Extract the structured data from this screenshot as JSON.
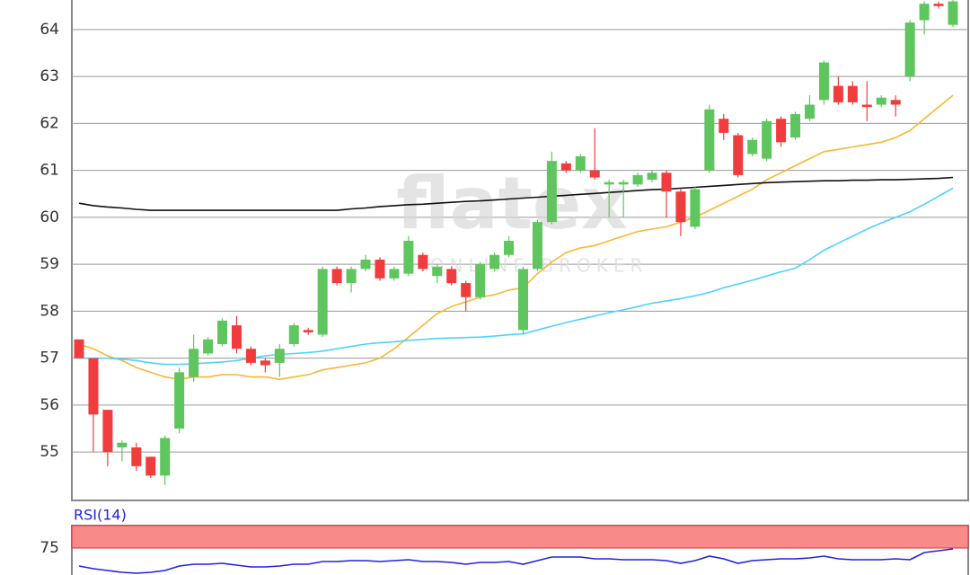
{
  "chart_data": [
    {
      "type": "candlestick",
      "watermark": "flatex",
      "watermark_sub": "ONLINE BROKER",
      "ylim": [
        53.97,
        64.63
      ],
      "yticks": [
        55,
        56,
        57,
        58,
        59,
        60,
        61,
        62,
        63,
        64
      ],
      "grid": true,
      "up_color": "#5fc55f",
      "down_color": "#f03c3c",
      "open": [
        57.4,
        57.0,
        55.9,
        55.1,
        55.1,
        54.9,
        54.5,
        55.5,
        56.6,
        57.1,
        57.3,
        57.7,
        57.2,
        56.95,
        56.9,
        57.3,
        57.6,
        57.5,
        58.9,
        58.6,
        58.9,
        59.1,
        58.7,
        58.8,
        59.2,
        58.75,
        58.9,
        58.6,
        58.3,
        58.9,
        59.2,
        57.6,
        58.9,
        59.9,
        61.15,
        61.0,
        61.0,
        60.7,
        60.7,
        60.7,
        60.8,
        60.95,
        60.55,
        59.8,
        61.0,
        62.1,
        61.75,
        61.35,
        61.25,
        62.1,
        61.7,
        62.1,
        62.5,
        62.8,
        62.8,
        62.4,
        62.4,
        62.5,
        63.0,
        64.2,
        64.55,
        64.1
      ],
      "high": [
        57.4,
        57.0,
        55.9,
        55.25,
        55.2,
        54.9,
        55.35,
        56.8,
        57.5,
        57.45,
        57.85,
        57.9,
        57.25,
        57.0,
        57.3,
        57.75,
        57.65,
        58.95,
        58.95,
        58.95,
        59.2,
        59.15,
        58.95,
        59.6,
        59.25,
        59.0,
        58.95,
        58.65,
        59.05,
        59.25,
        59.6,
        58.95,
        59.95,
        61.4,
        61.2,
        61.35,
        61.9,
        60.8,
        60.8,
        60.95,
        61.0,
        61.0,
        60.6,
        60.65,
        62.4,
        62.2,
        61.8,
        61.7,
        62.1,
        62.15,
        62.25,
        62.6,
        63.35,
        63.0,
        62.9,
        62.9,
        62.6,
        62.6,
        64.2,
        64.6,
        64.6,
        64.63
      ],
      "low": [
        57.0,
        55.0,
        54.7,
        54.8,
        54.6,
        54.45,
        54.3,
        55.4,
        56.5,
        57.05,
        57.25,
        57.1,
        56.85,
        56.7,
        56.6,
        57.25,
        57.5,
        57.45,
        58.55,
        58.4,
        58.85,
        58.65,
        58.65,
        58.75,
        58.85,
        58.6,
        58.55,
        58.0,
        58.25,
        58.85,
        59.15,
        57.5,
        58.85,
        59.85,
        60.95,
        60.95,
        60.8,
        60.0,
        60.0,
        60.65,
        60.75,
        60.0,
        59.6,
        59.75,
        60.95,
        61.65,
        60.85,
        61.3,
        61.2,
        61.5,
        61.65,
        62.05,
        62.4,
        62.4,
        62.4,
        62.05,
        62.35,
        62.15,
        62.9,
        63.9,
        64.45,
        64.05
      ],
      "close": [
        57.0,
        55.8,
        55.0,
        55.2,
        54.7,
        54.5,
        55.3,
        56.7,
        57.2,
        57.4,
        57.8,
        57.2,
        56.9,
        56.85,
        57.2,
        57.7,
        57.55,
        58.9,
        58.6,
        58.9,
        59.1,
        58.7,
        58.9,
        59.5,
        58.9,
        58.95,
        58.6,
        58.3,
        59.0,
        59.2,
        59.5,
        58.9,
        59.9,
        61.2,
        61.0,
        61.3,
        60.85,
        60.75,
        60.75,
        60.9,
        60.95,
        60.55,
        59.9,
        60.6,
        62.3,
        61.8,
        60.9,
        61.65,
        62.05,
        61.6,
        62.2,
        62.4,
        63.3,
        62.45,
        62.45,
        62.35,
        62.55,
        62.4,
        64.15,
        64.55,
        64.5,
        64.6
      ],
      "series": [
        {
          "color": "#f7b733",
          "values": [
            57.3,
            57.2,
            57.05,
            56.95,
            56.8,
            56.7,
            56.6,
            56.55,
            56.6,
            56.6,
            56.65,
            56.65,
            56.6,
            56.6,
            56.55,
            56.6,
            56.65,
            56.75,
            56.8,
            56.85,
            56.9,
            57.0,
            57.2,
            57.45,
            57.7,
            57.95,
            58.1,
            58.2,
            58.3,
            58.35,
            58.45,
            58.5,
            58.8,
            59.05,
            59.25,
            59.35,
            59.4,
            59.5,
            59.6,
            59.7,
            59.75,
            59.8,
            59.9,
            60.0,
            60.15,
            60.3,
            60.45,
            60.6,
            60.8,
            60.95,
            61.1,
            61.25,
            61.4,
            61.45,
            61.5,
            61.55,
            61.6,
            61.7,
            61.85,
            62.1,
            62.35,
            62.6
          ]
        },
        {
          "color": "#4dd2ff",
          "values": [
            57.0,
            57.0,
            57.0,
            56.98,
            56.95,
            56.9,
            56.87,
            56.87,
            56.88,
            56.9,
            56.92,
            56.95,
            57.0,
            57.05,
            57.08,
            57.1,
            57.12,
            57.15,
            57.2,
            57.25,
            57.3,
            57.33,
            57.35,
            57.38,
            57.4,
            57.42,
            57.43,
            57.44,
            57.45,
            57.47,
            57.5,
            57.52,
            57.6,
            57.68,
            57.76,
            57.83,
            57.9,
            57.97,
            58.03,
            58.1,
            58.17,
            58.22,
            58.27,
            58.33,
            58.4,
            58.5,
            58.58,
            58.66,
            58.75,
            58.84,
            58.92,
            59.1,
            59.3,
            59.45,
            59.6,
            59.75,
            59.88,
            60.0,
            60.12,
            60.28,
            60.45,
            60.62
          ]
        },
        {
          "color": "#111111",
          "values": [
            60.3,
            60.25,
            60.22,
            60.2,
            60.17,
            60.15,
            60.15,
            60.15,
            60.15,
            60.15,
            60.15,
            60.15,
            60.15,
            60.15,
            60.15,
            60.15,
            60.15,
            60.15,
            60.15,
            60.18,
            60.2,
            60.23,
            60.25,
            60.27,
            60.28,
            60.3,
            60.32,
            60.34,
            60.35,
            60.37,
            60.39,
            60.41,
            60.43,
            60.45,
            60.47,
            60.49,
            60.51,
            60.53,
            60.55,
            60.57,
            60.59,
            60.6,
            60.62,
            60.64,
            60.66,
            60.68,
            60.7,
            60.72,
            60.74,
            60.75,
            60.76,
            60.77,
            60.78,
            60.78,
            60.79,
            60.79,
            60.8,
            60.8,
            60.81,
            60.82,
            60.83,
            60.85
          ]
        }
      ]
    },
    {
      "type": "line",
      "title": "RSI(14)",
      "ylim": [
        45,
        100
      ],
      "yticks": [
        75
      ],
      "band": [
        75,
        100
      ],
      "band_color": "#f88a8a",
      "series": [
        {
          "color": "#2222dd",
          "values": [
            55,
            52,
            50,
            48,
            47,
            48,
            50,
            55,
            57,
            57,
            58,
            56,
            54,
            54,
            55,
            57,
            57,
            60,
            60,
            61,
            61,
            60,
            61,
            62,
            60,
            60,
            59,
            57,
            59,
            59,
            60,
            57,
            61,
            65,
            65,
            65,
            63,
            63,
            62,
            62,
            62,
            61,
            58,
            61,
            66,
            63,
            58,
            61,
            62,
            63,
            63,
            64,
            66,
            63,
            62,
            62,
            62,
            63,
            62,
            70,
            72,
            74
          ]
        }
      ]
    }
  ]
}
